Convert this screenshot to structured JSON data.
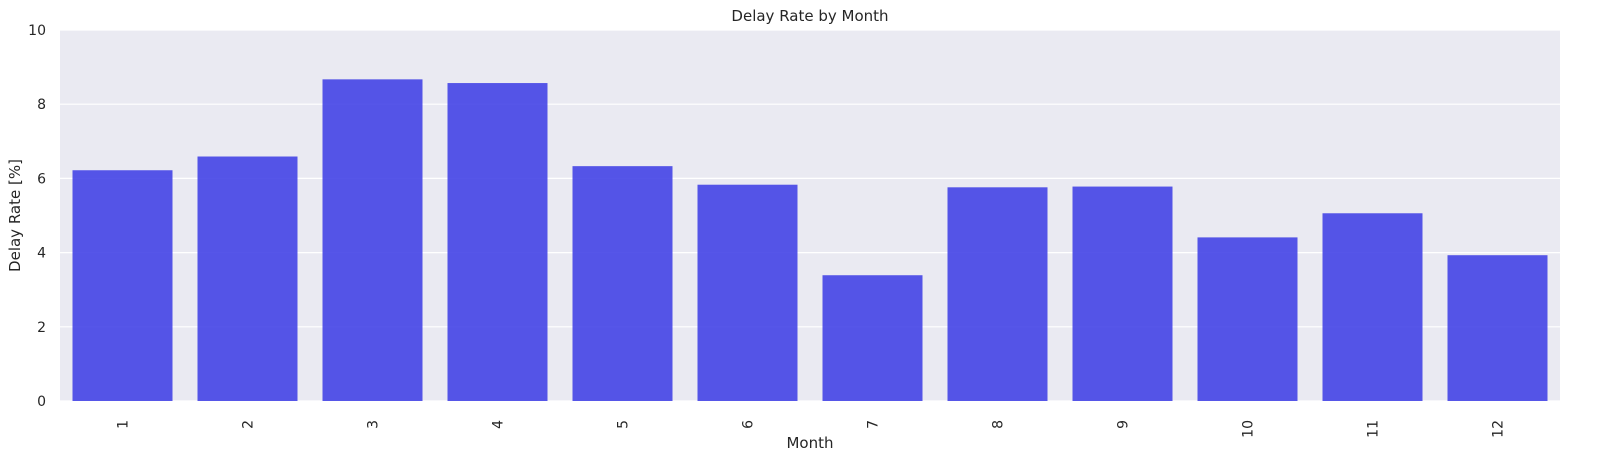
{
  "chart_data": {
    "type": "bar",
    "title": "Delay Rate by Month",
    "xlabel": "Month",
    "ylabel": "Delay Rate [%]",
    "categories": [
      "1",
      "2",
      "3",
      "4",
      "5",
      "6",
      "7",
      "8",
      "9",
      "10",
      "11",
      "12"
    ],
    "values": [
      6.22,
      6.59,
      8.67,
      8.57,
      6.33,
      5.83,
      3.39,
      5.76,
      5.78,
      4.41,
      5.06,
      3.93
    ],
    "ylim": [
      0,
      10
    ],
    "yticks": [
      "0",
      "2",
      "4",
      "6",
      "8",
      "10"
    ],
    "grid": true,
    "legend": "none",
    "colors": {
      "bar": "#4444e6",
      "plot_background": "#eaeaf2",
      "grid": "#ffffff",
      "text": "#262626"
    }
  }
}
